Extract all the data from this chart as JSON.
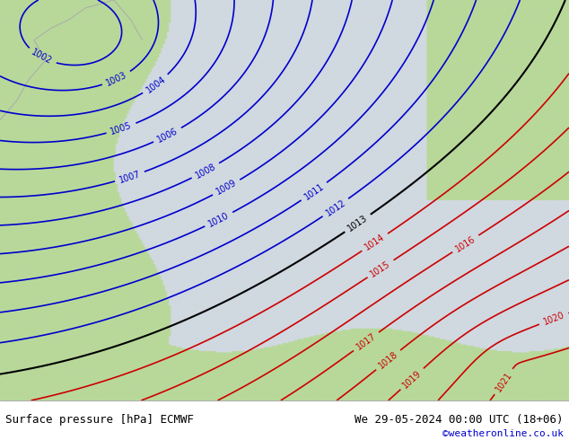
{
  "title_left": "Surface pressure [hPa] ECMWF",
  "title_right": "We 29-05-2024 00:00 UTC (18+06)",
  "title_right_sub": "©weatheronline.co.uk",
  "title_right_sub_color": "#0000cc",
  "bg_sea_color": "#d0d8e0",
  "bg_land_color": "#b8d89a",
  "bg_coast_color": "#aaaaaa",
  "bottom_bar_color": "#ffffff",
  "bottom_text_color": "#000000",
  "fig_width": 6.34,
  "fig_height": 4.9,
  "dpi": 100,
  "blue_contour_levels": [
    1002,
    1003,
    1004,
    1005,
    1006,
    1007,
    1008,
    1009,
    1010,
    1011,
    1012
  ],
  "black_contour_levels": [
    1013
  ],
  "red_contour_levels": [
    1014,
    1015,
    1016,
    1017,
    1018,
    1019,
    1020,
    1021
  ],
  "blue_color": "#0000cc",
  "black_color": "#000000",
  "red_color": "#cc0000",
  "contour_linewidth": 1.2,
  "label_fontsize": 7
}
